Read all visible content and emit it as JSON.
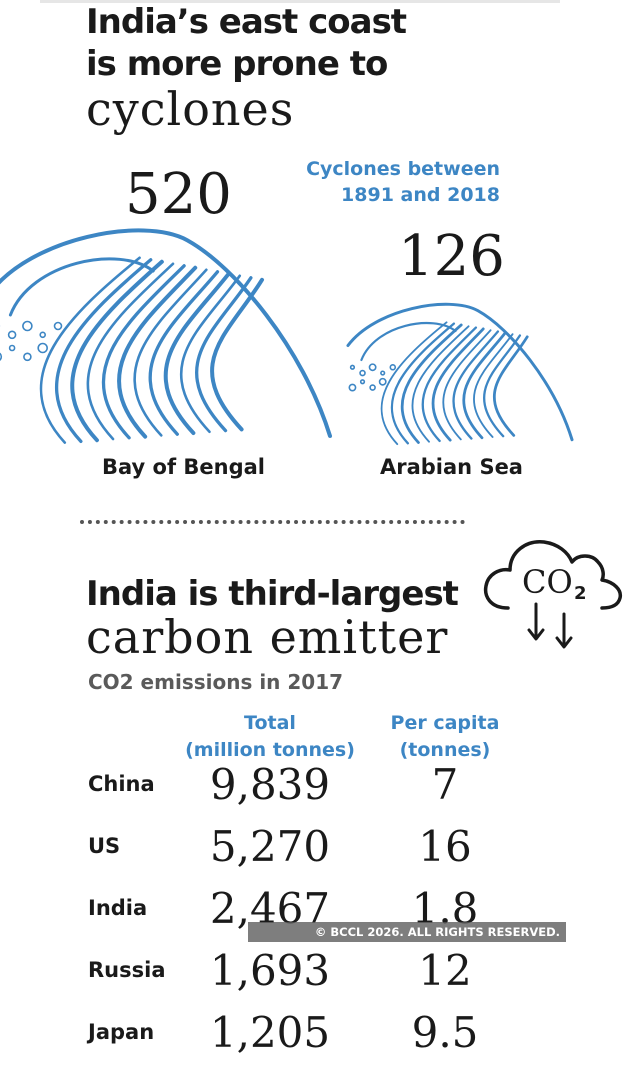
{
  "cyclones": {
    "title_line1": "India’s east coast",
    "title_line2": "is more prone to",
    "title_line3": "cyclones",
    "note_line1": "Cyclones between",
    "note_line2": "1891 and 2018",
    "wave_color": "#3d86c4"
  },
  "emissions": {
    "title_line1": "India is third-largest",
    "title_line2": "carbon emitter",
    "subtitle": "CO2 emissions in 2017",
    "icon_text": "CO",
    "icon_sub": "2",
    "accent_color": "#3d86c4"
  },
  "watermark": "© BCCL 2026. ALL RIGHTS RESERVED.",
  "chart_data": [
    {
      "type": "bar",
      "title": "India’s east coast is more prone to cyclones",
      "subtitle": "Cyclones between 1891 and 2018",
      "categories": [
        "Bay of Bengal",
        "Arabian Sea"
      ],
      "values": [
        520,
        126
      ],
      "value_labels": [
        "520",
        "126"
      ]
    },
    {
      "type": "table",
      "title": "India is third-largest carbon emitter",
      "subtitle": "CO2 emissions in 2017",
      "columns": [
        "Total (million tonnes)",
        "Per capita (tonnes)"
      ],
      "column_headers": [
        [
          "Total",
          "(million tonnes)"
        ],
        [
          "Per capita",
          "(tonnes)"
        ]
      ],
      "rows": [
        {
          "country": "China",
          "total": "9,839",
          "per_capita": "7"
        },
        {
          "country": "US",
          "total": "5,270",
          "per_capita": "16"
        },
        {
          "country": "India",
          "total": "2,467",
          "per_capita": "1.8"
        },
        {
          "country": "Russia",
          "total": "1,693",
          "per_capita": "12"
        },
        {
          "country": "Japan",
          "total": "1,205",
          "per_capita": "9.5"
        }
      ]
    }
  ]
}
